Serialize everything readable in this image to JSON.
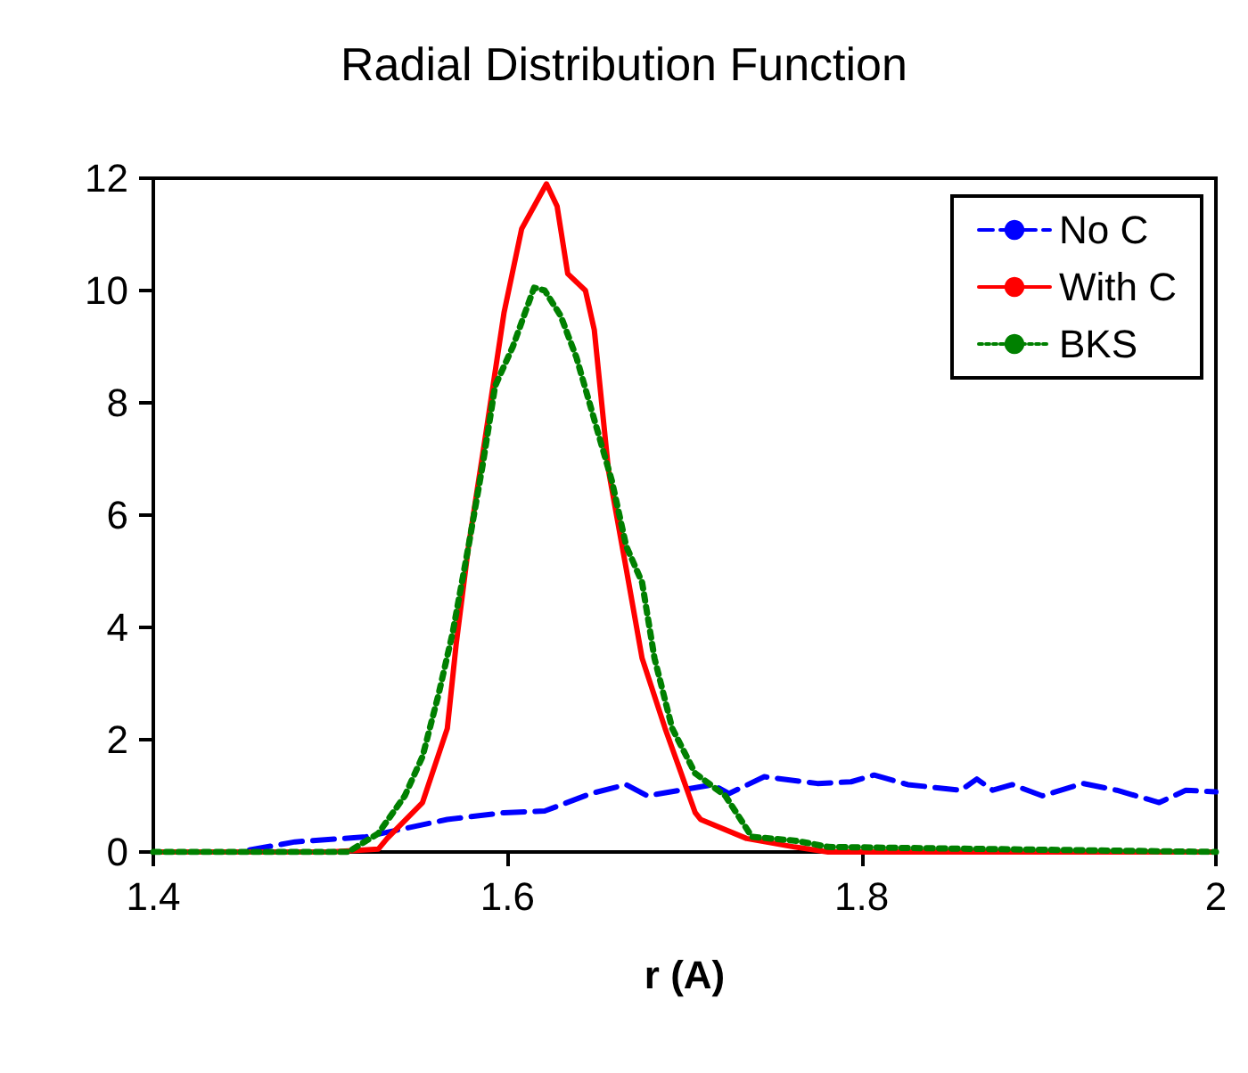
{
  "chart_data": {
    "type": "line",
    "title": "Radial Distribution Function",
    "xlabel": "r (A)",
    "xlim": [
      1.4,
      2
    ],
    "xticks": [
      1.4,
      1.6,
      1.8,
      2
    ],
    "ylim": [
      0,
      12
    ],
    "yticks": [
      0,
      2,
      4,
      6,
      8,
      10,
      12
    ],
    "grid": false,
    "legend": "top right",
    "marker": "none",
    "series": [
      {
        "name": "No C",
        "color": "#0000ff",
        "line_style": "dashed",
        "x": [
          1.4,
          1.448,
          1.48,
          1.52,
          1.566,
          1.598,
          1.621,
          1.647,
          1.667,
          1.679,
          1.716,
          1.725,
          1.745,
          1.775,
          1.794,
          1.807,
          1.826,
          1.856,
          1.865,
          1.874,
          1.885,
          1.902,
          1.925,
          1.944,
          1.968,
          1.983,
          2.0
        ],
        "values": [
          0,
          0,
          0.18,
          0.27,
          0.58,
          0.7,
          0.73,
          1.04,
          1.2,
          1.0,
          1.2,
          1.04,
          1.34,
          1.22,
          1.25,
          1.37,
          1.2,
          1.1,
          1.3,
          1.1,
          1.2,
          1.0,
          1.22,
          1.1,
          0.88,
          1.1,
          1.07
        ]
      },
      {
        "name": "With C",
        "color": "#ff0000",
        "line_style": "solid",
        "x": [
          1.4,
          1.5,
          1.527,
          1.532,
          1.552,
          1.566,
          1.571,
          1.578,
          1.588,
          1.598,
          1.608,
          1.622,
          1.628,
          1.634,
          1.644,
          1.649,
          1.657,
          1.667,
          1.676,
          1.689,
          1.706,
          1.709,
          1.735,
          1.762,
          1.781,
          2.0
        ],
        "values": [
          0,
          0,
          0.05,
          0.24,
          0.88,
          2.2,
          3.7,
          5.45,
          7.5,
          9.6,
          11.1,
          11.9,
          11.5,
          10.3,
          10.0,
          9.3,
          6.8,
          5.05,
          3.45,
          2.2,
          0.7,
          0.58,
          0.24,
          0.09,
          0,
          0
        ]
      },
      {
        "name": "BKS",
        "color": "#008000",
        "line_style": "dotted",
        "x": [
          1.4,
          1.51,
          1.527,
          1.542,
          1.552,
          1.561,
          1.569,
          1.578,
          1.586,
          1.593,
          1.603,
          1.615,
          1.621,
          1.63,
          1.639,
          1.649,
          1.659,
          1.667,
          1.676,
          1.683,
          1.693,
          1.706,
          1.723,
          1.738,
          1.763,
          1.781,
          2.0
        ],
        "values": [
          0,
          0,
          0.33,
          1.0,
          1.7,
          2.8,
          3.9,
          5.45,
          6.9,
          8.3,
          9.0,
          10.05,
          10.0,
          9.55,
          8.8,
          7.7,
          6.6,
          5.45,
          4.8,
          3.45,
          2.2,
          1.4,
          1.0,
          0.27,
          0.2,
          0.09,
          0
        ]
      }
    ]
  }
}
